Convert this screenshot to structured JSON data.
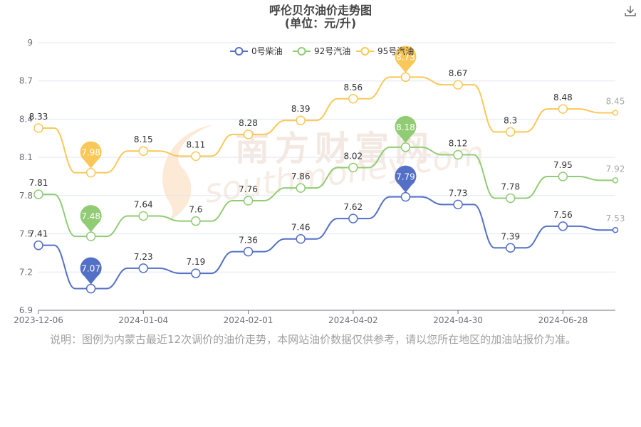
{
  "chart_data": {
    "type": "line",
    "title": "呼伦贝尔油价走势图",
    "subtitle": "(单位：元/升)",
    "x": [
      "2023-12-06",
      "",
      "2024-01-04",
      "",
      "2024-02-01",
      "",
      "2024-04-02",
      "",
      "2024-04-30",
      "",
      "2024-06-28",
      ""
    ],
    "xticks": [
      "2023-12-06",
      "2024-01-04",
      "2024-02-01",
      "2024-04-02",
      "2024-04-30",
      "2024-06-28"
    ],
    "xtick_indices": [
      0,
      2,
      4,
      6,
      8,
      10
    ],
    "ylim": [
      6.9,
      9
    ],
    "yticks": [
      "6.9",
      "7.2",
      "7.5",
      "7.8",
      "8.1",
      "8.4",
      "8.7",
      "9"
    ],
    "grid": true,
    "legend_position": "top",
    "series": [
      {
        "name": "0号柴油",
        "color": "#5470c6",
        "values": [
          7.41,
          7.07,
          7.23,
          7.19,
          7.36,
          7.46,
          7.62,
          7.79,
          7.73,
          7.39,
          7.56,
          7.53
        ],
        "min_index": 1,
        "max_index": 7
      },
      {
        "name": "92号汽油",
        "color": "#91cc75",
        "values": [
          7.81,
          7.48,
          7.64,
          7.6,
          7.76,
          7.86,
          8.02,
          8.18,
          8.12,
          7.78,
          7.95,
          7.92
        ],
        "min_index": 1,
        "max_index": 7
      },
      {
        "name": "95号汽油",
        "color": "#fac858",
        "values": [
          8.33,
          7.98,
          8.15,
          8.11,
          8.28,
          8.39,
          8.56,
          8.73,
          8.67,
          8.3,
          8.48,
          8.45
        ],
        "min_index": 1,
        "max_index": 7
      }
    ]
  },
  "note": "说明：图例为内蒙古最近12次调价的油价走势，本网站油价数据仅供参考，请以您所在地区的加油站报价为准。",
  "watermark": {
    "text_cn": "南方财富网",
    "text_en": "southmoney.com"
  },
  "toolbar": {
    "download_icon": "download-icon"
  }
}
